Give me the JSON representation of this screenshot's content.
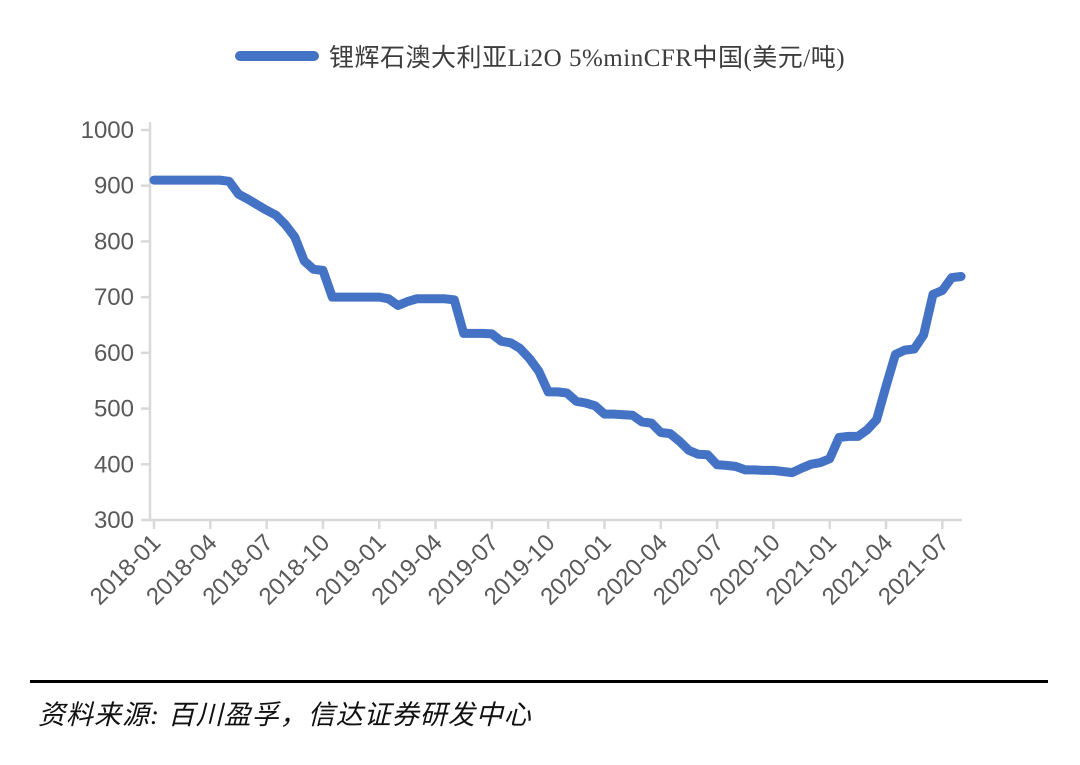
{
  "legend": {
    "label": "锂辉石澳大利亚Li2O 5%minCFR中国(美元/吨)"
  },
  "footer": {
    "source_label": "资料来源: 百川盈孚，信达证券研发中心"
  },
  "chart_data": {
    "type": "line",
    "title": "锂辉石澳大利亚Li2O 5%minCFR中国(美元/吨)",
    "ylabel": "",
    "xlabel": "",
    "unit": "美元/吨",
    "grid": false,
    "legend_position": "top",
    "ylim": [
      300,
      1000
    ],
    "y_ticks": [
      300,
      400,
      500,
      600,
      700,
      800,
      900,
      1000
    ],
    "x_tick_labels": [
      "2018-01",
      "2018-04",
      "2018-07",
      "2018-10",
      "2019-01",
      "2019-04",
      "2019-07",
      "2019-10",
      "2020-01",
      "2020-04",
      "2020-07",
      "2020-10",
      "2021-01",
      "2021-04",
      "2021-07"
    ],
    "x_tick_interval_months": 3,
    "x_start": "2018-01",
    "x_end": "2021-08",
    "x_step_months": 0.5,
    "series": [
      {
        "name": "锂辉石澳大利亚Li2O 5%minCFR中国(美元/吨)",
        "values": [
          910,
          910,
          910,
          910,
          910,
          910,
          910,
          910,
          908,
          885,
          876,
          866,
          856,
          847,
          830,
          808,
          765,
          750,
          748,
          700,
          700,
          700,
          700,
          700,
          700,
          697,
          685,
          692,
          697,
          697,
          697,
          697,
          695,
          635,
          635,
          635,
          634,
          621,
          618,
          608,
          590,
          567,
          530,
          530,
          528,
          513,
          510,
          505,
          490,
          490,
          489,
          488,
          476,
          474,
          457,
          455,
          441,
          425,
          418,
          417,
          399,
          398,
          396,
          390,
          390,
          389,
          389,
          387,
          385,
          393,
          400,
          403,
          410,
          448,
          450,
          450,
          462,
          480,
          540,
          597,
          605,
          607,
          632,
          705,
          712,
          735,
          737
        ]
      }
    ],
    "colors": {
      "line": "#4472C4",
      "axis": "#D9D9D9",
      "tick_label": "#595959"
    }
  }
}
